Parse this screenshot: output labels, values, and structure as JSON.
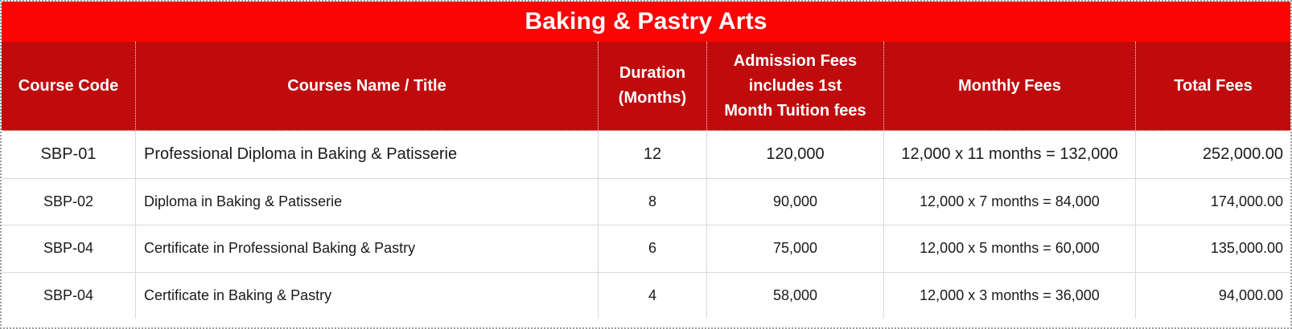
{
  "title": "Baking & Pastry Arts",
  "colors": {
    "title_bg": "#FB0404",
    "header_bg": "#C00B0D",
    "header_text": "#FFFFFF",
    "body_text": "#1A1A1A",
    "gridline": "#D9D9D9"
  },
  "columns": [
    {
      "key": "code",
      "label": "Course Code"
    },
    {
      "key": "name",
      "label": "Courses Name / Title"
    },
    {
      "key": "duration",
      "label": "Duration\n(Months)"
    },
    {
      "key": "admission",
      "label": "Admission Fees\nincludes  1st\nMonth Tuition fees"
    },
    {
      "key": "monthly",
      "label": "Monthly Fees"
    },
    {
      "key": "total",
      "label": "Total Fees"
    }
  ],
  "rows": [
    {
      "code": "SBP-01",
      "name": "Professional Diploma in Baking & Patisserie",
      "duration": "12",
      "admission": "120,000",
      "monthly": "12,000 x 11 months = 132,000",
      "total": "252,000.00"
    },
    {
      "code": "SBP-02",
      "name": "Diploma in Baking & Patisserie",
      "duration": "8",
      "admission": "90,000",
      "monthly": "12,000 x 7 months = 84,000",
      "total": "174,000.00"
    },
    {
      "code": "SBP-04",
      "name": "Certificate in Professional Baking & Pastry",
      "duration": "6",
      "admission": "75,000",
      "monthly": "12,000 x 5 months = 60,000",
      "total": "135,000.00"
    },
    {
      "code": "SBP-04",
      "name": "Certificate in Baking & Pastry",
      "duration": "4",
      "admission": "58,000",
      "monthly": "12,000 x 3 months = 36,000",
      "total": "94,000.00"
    }
  ]
}
